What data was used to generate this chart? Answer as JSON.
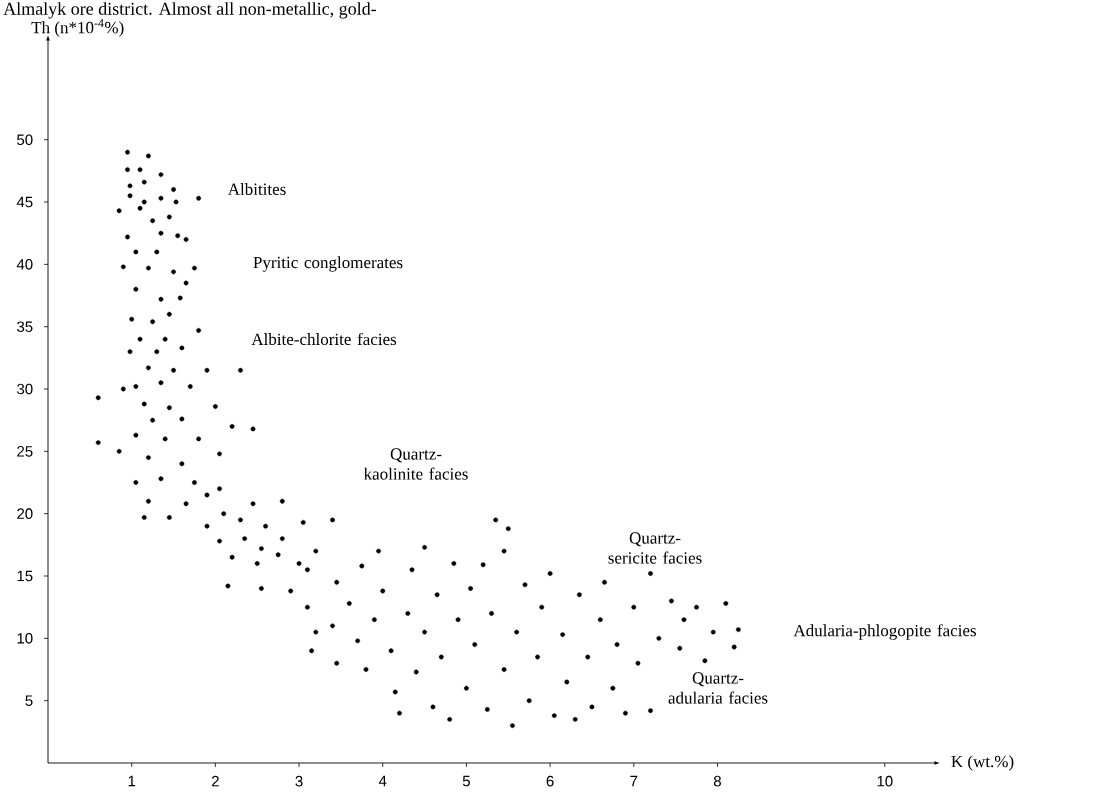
{
  "chart_data": {
    "type": "scatter",
    "xlabel": "K (wt.%)",
    "ylabel": "Th (n*10$^{-4}$%)",
    "xlim": [
      0,
      10.6
    ],
    "ylim": [
      0,
      58
    ],
    "xticks": [
      1,
      2,
      3,
      4,
      5,
      6,
      7,
      8,
      10
    ],
    "yticks": [
      5,
      10,
      15,
      20,
      25,
      30,
      35,
      40,
      45,
      50
    ],
    "marker": "circle",
    "series": [
      {
        "color": "#000000",
        "x": [
          0.95,
          1.2,
          0.95,
          1.1,
          1.35,
          0.98,
          1.15,
          1.5,
          0.98,
          1.15,
          1.35,
          1.53,
          1.8,
          0.85,
          1.1,
          1.25,
          1.45,
          1.65,
          0.95,
          1.35,
          1.55,
          1.05,
          1.3,
          1.75,
          0.9,
          1.2,
          1.5,
          1.65,
          1.05,
          1.35,
          1.58,
          1.0,
          1.25,
          1.45,
          1.1,
          1.4,
          1.8,
          0.98,
          1.3,
          1.6,
          1.2,
          1.5,
          1.9,
          1.05,
          1.35,
          1.7,
          2.3,
          0.9,
          1.15,
          1.45,
          2.0,
          0.6,
          1.25,
          1.6,
          2.2,
          2.45,
          1.05,
          1.4,
          1.8,
          0.6,
          0.85,
          1.2,
          1.6,
          2.05,
          1.05,
          1.35,
          1.75,
          2.05,
          1.15,
          1.45,
          1.2,
          1.65,
          1.9,
          1.9,
          2.1,
          2.3,
          2.45,
          2.6,
          2.8,
          2.05,
          2.35,
          2.55,
          2.8,
          3.05,
          3.4,
          2.2,
          2.5,
          2.75,
          3.0,
          3.2,
          2.15,
          2.55,
          2.9,
          3.1,
          3.45,
          3.1,
          3.2,
          3.15,
          3.4,
          3.45,
          3.6,
          3.7,
          3.75,
          3.8,
          3.9,
          3.95,
          4.0,
          4.1,
          4.15,
          4.2,
          4.3,
          4.35,
          4.4,
          4.5,
          4.5,
          4.6,
          4.65,
          4.7,
          4.8,
          4.85,
          4.9,
          5.0,
          5.05,
          5.1,
          5.2,
          5.25,
          5.3,
          5.35,
          5.45,
          5.5,
          5.45,
          5.55,
          5.6,
          5.7,
          5.75,
          5.85,
          5.9,
          6.0,
          6.05,
          6.15,
          6.2,
          6.3,
          6.35,
          6.45,
          6.5,
          6.6,
          6.65,
          6.75,
          6.8,
          6.9,
          7.0,
          7.05,
          7.2,
          7.2,
          7.3,
          7.45,
          7.55,
          7.6,
          7.75,
          7.85,
          7.95,
          8.1,
          8.2,
          8.25
        ],
        "values": [
          49,
          48.7,
          47.6,
          47.6,
          47.2,
          46.3,
          46.6,
          46,
          45.5,
          45,
          45.3,
          45,
          45.3,
          44.3,
          44.5,
          43.5,
          43.8,
          42,
          42.2,
          42.5,
          42.3,
          41,
          41,
          39.7,
          39.8,
          39.7,
          39.4,
          38.5,
          38,
          37.2,
          37.3,
          35.6,
          35.4,
          36,
          34,
          34,
          34.7,
          33,
          33,
          33.3,
          31.7,
          31.5,
          31.5,
          30.2,
          30.5,
          30.2,
          31.5,
          30,
          28.8,
          28.5,
          28.6,
          29.3,
          27.5,
          27.6,
          27,
          26.8,
          26.3,
          26,
          26,
          25.7,
          25,
          24.5,
          24,
          24.8,
          22.5,
          22.8,
          22.5,
          22,
          19.7,
          19.7,
          21,
          20.8,
          21.5,
          19,
          20,
          19.5,
          20.8,
          19,
          21,
          17.8,
          18,
          17.2,
          18,
          19.3,
          19.5,
          16.5,
          16,
          16.7,
          16,
          17,
          14.2,
          14,
          13.8,
          15.5,
          14.5,
          12.5,
          10.5,
          9,
          11,
          8,
          12.8,
          9.8,
          15.8,
          7.5,
          11.5,
          17,
          13.8,
          9,
          5.7,
          4,
          12,
          15.5,
          7.3,
          17.3,
          10.5,
          4.5,
          13.5,
          8.5,
          3.5,
          16,
          11.5,
          6,
          14,
          9.5,
          15.9,
          4.3,
          12,
          19.5,
          17,
          18.8,
          7.5,
          3,
          10.5,
          14.3,
          5,
          8.5,
          12.5,
          15.2,
          3.8,
          10.3,
          6.5,
          3.5,
          13.5,
          8.5,
          4.5,
          11.5,
          14.5,
          6,
          9.5,
          4,
          12.5,
          8,
          15.2,
          4.2,
          10,
          13,
          9.2,
          11.5,
          12.5,
          8.2,
          10.5,
          12.8,
          9.3,
          10.7
        ]
      }
    ],
    "annotations": [
      "Almalyk ore district. Almost all non-metallic, gold-",
      "Albitites",
      "Pyritic conglomerates",
      "Albite-chlorite facies",
      "Quartz-kaolinite facies",
      "Quartz-sericite facies",
      "Adularia-phlogopite facies",
      "Quartz-adularia facies"
    ]
  }
}
